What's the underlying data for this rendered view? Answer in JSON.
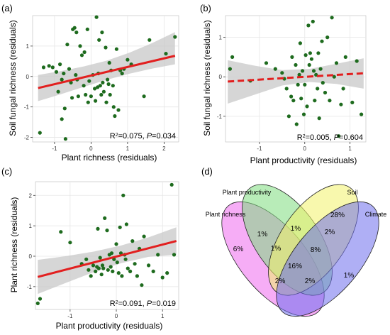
{
  "panels": [
    {
      "label": "(a)",
      "chart_data": {
        "type": "scatter",
        "xlabel": "Plant richness (residuals)",
        "ylabel": "Soil fungal richness (residuals)",
        "xlim": [
          -1.6,
          2.4
        ],
        "ylim": [
          -2.15,
          2.0
        ],
        "xticks": [
          -1,
          0,
          1,
          2
        ],
        "yticks": [
          -2,
          -1,
          0,
          1
        ],
        "grid": true,
        "points": [
          [
            -1.4,
            -1.85
          ],
          [
            -1.3,
            0.3
          ],
          [
            -1.15,
            0.35
          ],
          [
            -1.05,
            0.3
          ],
          [
            -0.95,
            0.15
          ],
          [
            -0.9,
            -0.5
          ],
          [
            -0.85,
            0.4
          ],
          [
            -0.8,
            -0.1
          ],
          [
            -0.8,
            -1.4
          ],
          [
            -0.75,
            0.1
          ],
          [
            -0.72,
            -1.05
          ],
          [
            -0.7,
            -2.05
          ],
          [
            -0.65,
            1.05
          ],
          [
            -0.6,
            0.25
          ],
          [
            -0.55,
            -0.2
          ],
          [
            -0.52,
            -0.7
          ],
          [
            -0.5,
            1.55
          ],
          [
            -0.45,
            1.6
          ],
          [
            -0.42,
            0.05
          ],
          [
            -0.4,
            1.45
          ],
          [
            -0.38,
            -0.1
          ],
          [
            -0.35,
            -0.65
          ],
          [
            -0.3,
            1.0
          ],
          [
            -0.25,
            0.7
          ],
          [
            -0.2,
            -0.3
          ],
          [
            -0.18,
            0.8
          ],
          [
            -0.15,
            -0.6
          ],
          [
            -0.1,
            1.55
          ],
          [
            -0.08,
            -0.85
          ],
          [
            -0.05,
            -0.15
          ],
          [
            0.0,
            -0.65
          ],
          [
            0.05,
            0.05
          ],
          [
            0.1,
            -0.4
          ],
          [
            0.12,
            -0.8
          ],
          [
            0.15,
            1.95
          ],
          [
            0.18,
            -0.35
          ],
          [
            0.2,
            0.1
          ],
          [
            0.22,
            1.2
          ],
          [
            0.25,
            -0.3
          ],
          [
            0.28,
            -0.6
          ],
          [
            0.3,
            1.45
          ],
          [
            0.32,
            -0.2
          ],
          [
            0.35,
            -0.5
          ],
          [
            0.4,
            0.95
          ],
          [
            0.42,
            -0.85
          ],
          [
            0.45,
            -0.1
          ],
          [
            0.48,
            -0.25
          ],
          [
            0.5,
            0.45
          ],
          [
            0.52,
            -0.6
          ],
          [
            0.55,
            0.2
          ],
          [
            0.6,
            -0.3
          ],
          [
            0.62,
            -1.0
          ],
          [
            0.65,
            -1.3
          ],
          [
            0.7,
            0.9
          ],
          [
            0.75,
            -1.1
          ],
          [
            0.8,
            0.2
          ],
          [
            0.85,
            0.1
          ],
          [
            0.9,
            0.25
          ],
          [
            1.0,
            0.55
          ],
          [
            1.1,
            0.4
          ],
          [
            1.45,
            -0.65
          ],
          [
            1.6,
            1.2
          ],
          [
            2.05,
            0.75
          ],
          [
            2.3,
            1.3
          ]
        ],
        "fit": {
          "x": [
            -1.45,
            2.3
          ],
          "y": [
            -0.38,
            0.68
          ],
          "style": "solid"
        },
        "ci_upper": [
          0.05,
          0.18,
          0.33,
          0.52,
          0.78,
          1.1,
          1.46
        ],
        "ci_lower": [
          -0.81,
          -0.58,
          -0.34,
          -0.11,
          0.09,
          0.26,
          0.4
        ],
        "annotation": {
          "pre": "R",
          "sup": "2",
          "mid": "=0.075, ",
          "pitalic": "P",
          "post": "=0.034"
        }
      }
    },
    {
      "label": "(b)",
      "chart_data": {
        "type": "scatter",
        "xlabel": "Plant productivity (residuals)",
        "ylabel": "Soil fungal richness (residuals)",
        "xlim": [
          -1.75,
          1.35
        ],
        "ylim": [
          -1.65,
          1.55
        ],
        "xticks": [
          -1,
          0,
          1
        ],
        "yticks": [
          -1,
          0,
          1
        ],
        "grid": true,
        "points": [
          [
            -1.65,
            0.2
          ],
          [
            -1.6,
            0.5
          ],
          [
            -1.2,
            -0.1
          ],
          [
            -0.85,
            0.35
          ],
          [
            -0.65,
            0.2
          ],
          [
            -0.5,
            0.1
          ],
          [
            -0.45,
            -0.05
          ],
          [
            -0.4,
            -0.3
          ],
          [
            -0.35,
            -1.0
          ],
          [
            -0.3,
            -0.5
          ],
          [
            -0.28,
            0.5
          ],
          [
            -0.25,
            -0.6
          ],
          [
            -0.2,
            0.3
          ],
          [
            -0.18,
            -1.2
          ],
          [
            -0.15,
            -0.2
          ],
          [
            -0.12,
            0.05
          ],
          [
            -0.1,
            0.85
          ],
          [
            -0.08,
            -0.55
          ],
          [
            -0.05,
            0.15
          ],
          [
            -0.02,
            -0.95
          ],
          [
            0.0,
            -0.2
          ],
          [
            0.02,
            0.55
          ],
          [
            0.05,
            -0.75
          ],
          [
            0.08,
            1.3
          ],
          [
            0.1,
            0.3
          ],
          [
            0.12,
            0.6
          ],
          [
            0.15,
            0.45
          ],
          [
            0.18,
            1.4
          ],
          [
            0.2,
            0.15
          ],
          [
            0.22,
            -0.6
          ],
          [
            0.25,
            0.05
          ],
          [
            0.28,
            -0.3
          ],
          [
            0.3,
            0.6
          ],
          [
            0.32,
            -1.05
          ],
          [
            0.35,
            0.2
          ],
          [
            0.38,
            0.9
          ],
          [
            0.4,
            -0.15
          ],
          [
            0.45,
            -0.4
          ],
          [
            0.5,
            1.0
          ],
          [
            0.55,
            -0.6
          ],
          [
            0.6,
            1.5
          ],
          [
            0.65,
            0.0
          ],
          [
            0.7,
            0.35
          ],
          [
            0.75,
            -1.5
          ],
          [
            0.8,
            -0.7
          ],
          [
            0.85,
            -0.3
          ],
          [
            0.9,
            0.5
          ],
          [
            1.05,
            -0.65
          ],
          [
            1.15,
            0.4
          ],
          [
            1.25,
            -0.95
          ]
        ],
        "fit": {
          "x": [
            -1.7,
            1.3
          ],
          "y": [
            -0.12,
            0.09
          ],
          "style": "dashed"
        },
        "ci_upper": [
          0.42,
          0.28,
          0.17,
          0.2,
          0.33,
          0.47
        ],
        "ci_lower": [
          -0.68,
          -0.45,
          -0.22,
          -0.13,
          -0.18,
          -0.3
        ],
        "annotation": {
          "pre": "R",
          "sup": "2",
          "mid": "=0.005, ",
          "pitalic": "P",
          "post": "=0.604"
        }
      }
    },
    {
      "label": "(c)",
      "chart_data": {
        "type": "scatter",
        "xlabel": "Plant productivity (residuals)",
        "ylabel": "Plant richness (residuals)",
        "xlim": [
          -1.75,
          1.35
        ],
        "ylim": [
          -1.75,
          2.45
        ],
        "xticks": [
          -1,
          0,
          1
        ],
        "yticks": [
          -1,
          0,
          1,
          2
        ],
        "grid": true,
        "points": [
          [
            -1.7,
            -1.55
          ],
          [
            -1.65,
            -1.4
          ],
          [
            -1.2,
            0.8
          ],
          [
            -1.0,
            0.45
          ],
          [
            -0.75,
            -0.25
          ],
          [
            -0.65,
            -0.1
          ],
          [
            -0.6,
            -0.45
          ],
          [
            -0.55,
            -0.65
          ],
          [
            -0.5,
            -0.3
          ],
          [
            -0.45,
            -0.5
          ],
          [
            -0.42,
            -0.35
          ],
          [
            -0.4,
            0.9
          ],
          [
            -0.38,
            -0.4
          ],
          [
            -0.35,
            -0.05
          ],
          [
            -0.32,
            -0.6
          ],
          [
            -0.3,
            -0.3
          ],
          [
            -0.28,
            -0.4
          ],
          [
            -0.25,
            1.25
          ],
          [
            -0.2,
            0.85
          ],
          [
            -0.18,
            -0.45
          ],
          [
            -0.15,
            0.05
          ],
          [
            -0.12,
            -0.35
          ],
          [
            -0.1,
            0.1
          ],
          [
            -0.08,
            -0.5
          ],
          [
            -0.05,
            -0.1
          ],
          [
            0.0,
            0.4
          ],
          [
            0.02,
            -0.2
          ],
          [
            0.05,
            -0.55
          ],
          [
            0.08,
            0.95
          ],
          [
            0.1,
            0.1
          ],
          [
            0.12,
            -0.65
          ],
          [
            0.15,
            2.0
          ],
          [
            0.18,
            0.05
          ],
          [
            0.2,
            -0.1
          ],
          [
            0.22,
            1.05
          ],
          [
            0.25,
            -0.4
          ],
          [
            0.3,
            -0.5
          ],
          [
            0.35,
            0.5
          ],
          [
            0.4,
            -0.25
          ],
          [
            0.45,
            -0.65
          ],
          [
            0.5,
            0.25
          ],
          [
            0.55,
            -0.95
          ],
          [
            0.6,
            0.65
          ],
          [
            0.7,
            -0.3
          ],
          [
            0.8,
            -0.5
          ],
          [
            0.9,
            0.05
          ],
          [
            1.0,
            -0.7
          ],
          [
            1.1,
            -0.55
          ],
          [
            1.2,
            2.35
          ],
          [
            1.25,
            0.05
          ]
        ],
        "fit": {
          "x": [
            -1.7,
            1.3
          ],
          "y": [
            -0.68,
            0.5
          ],
          "style": "solid"
        },
        "ci_upper": [
          -0.12,
          0.0,
          0.15,
          0.35,
          0.62,
          0.95
        ],
        "ci_lower": [
          -1.24,
          -0.88,
          -0.53,
          -0.23,
          -0.02,
          0.05
        ],
        "annotation": {
          "pre": "R",
          "sup": "2",
          "mid": "=0.091, ",
          "pitalic": "P",
          "post": "=0.019"
        }
      }
    }
  ],
  "venn": {
    "label": "(d)",
    "sets": [
      "Plant productivity",
      "Soil",
      "Plant richness",
      "Climate"
    ],
    "colors": {
      "plant_productivity": "#7ddc7d",
      "soil": "#f3f36a",
      "plant_richness": "#ee6aee",
      "climate": "#6d6dec"
    },
    "regions": [
      {
        "key": "soil_only",
        "value": "28%"
      },
      {
        "key": "richness_only",
        "value": "6%"
      },
      {
        "key": "climate_only",
        "value": "1%"
      },
      {
        "key": "richness_productivity",
        "value": "1%"
      },
      {
        "key": "productivity_soil",
        "value": "1%"
      },
      {
        "key": "soil_climate",
        "value": "2%"
      },
      {
        "key": "richness_productivity_soil",
        "value": "1%"
      },
      {
        "key": "productivity_soil_climate",
        "value": "8%"
      },
      {
        "key": "all_four",
        "value": "16%"
      },
      {
        "key": "richness_productivity_climate",
        "value": "2%"
      },
      {
        "key": "richness_soil_climate",
        "value": "2%"
      }
    ]
  },
  "colors": {
    "point": "#1e6b1e",
    "line": "#e21f1f",
    "ci": "#c8c8c8",
    "grid": "#e6e6e6",
    "axis": "#333333"
  }
}
